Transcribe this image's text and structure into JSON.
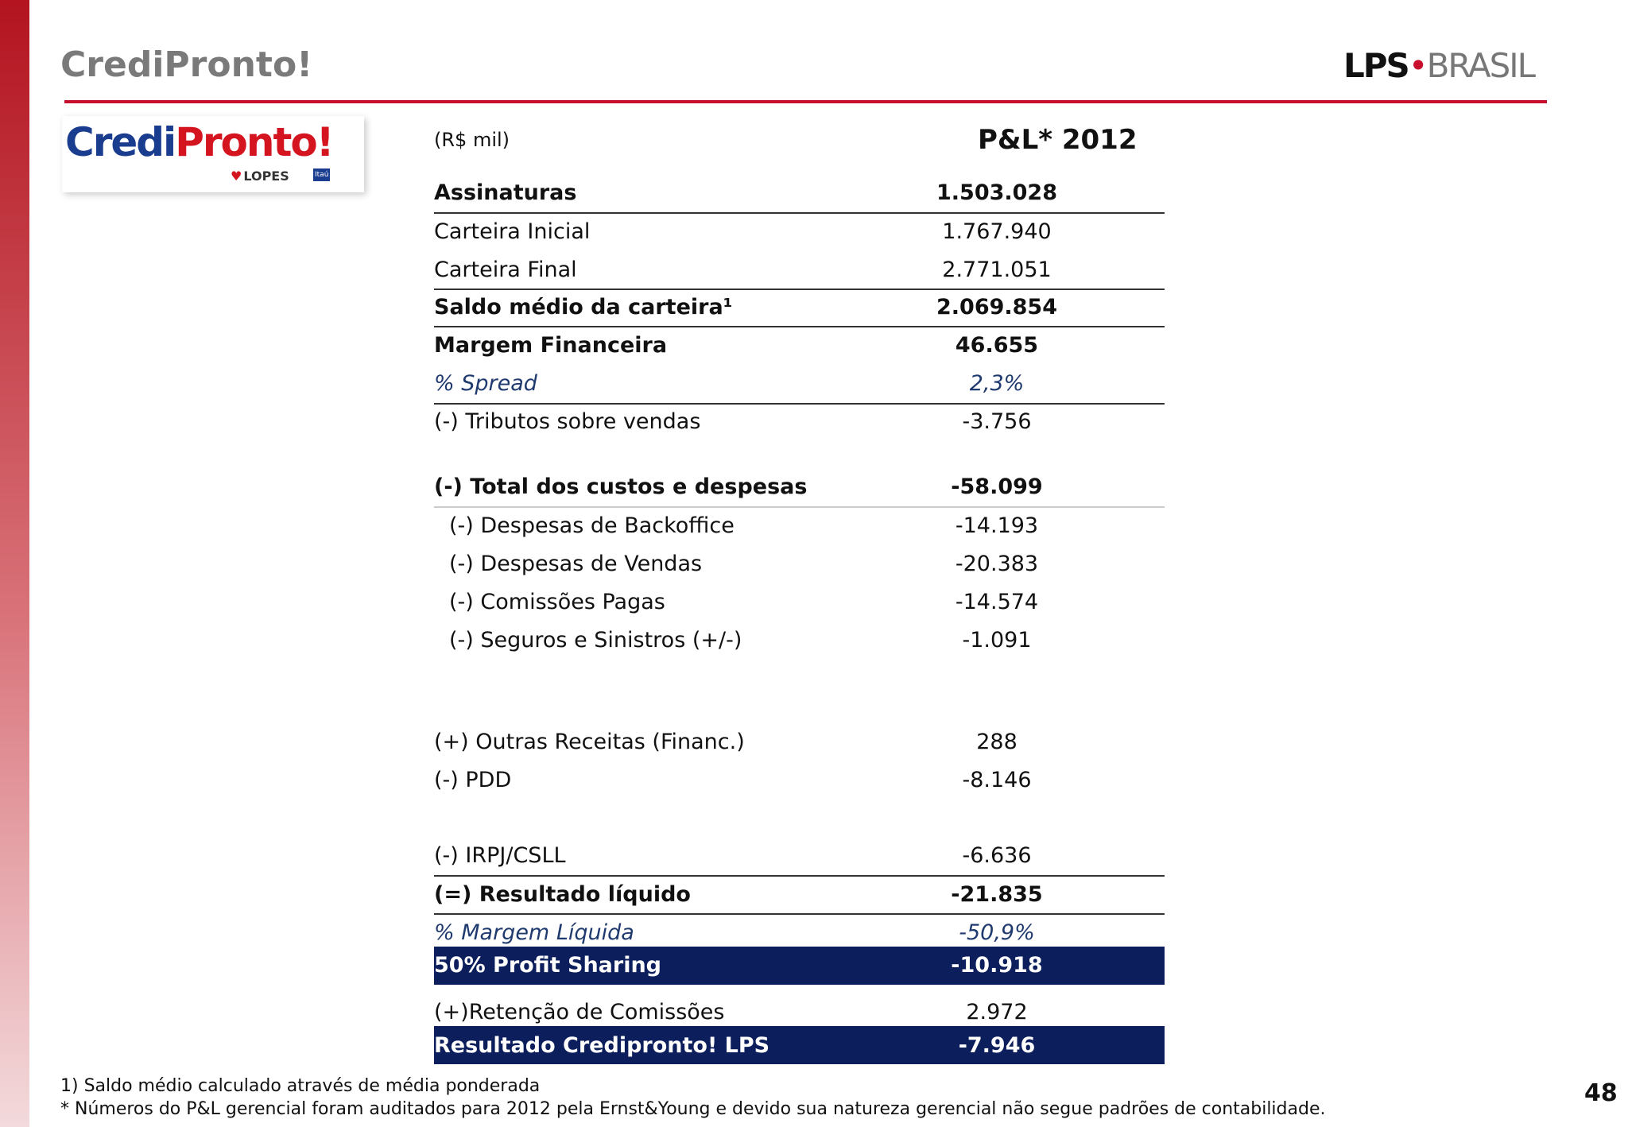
{
  "header": {
    "title": "CrediPronto!",
    "brand": {
      "left": "LPS",
      "right": "BRASIL"
    }
  },
  "logo": {
    "credi": "Credi",
    "pronto": "Pronto!",
    "lopes": "LOPES",
    "itau": "Itaú"
  },
  "table": {
    "unit": "(R$ mil)",
    "column": "P&L* 2012",
    "rows": [
      [
        "Assinaturas",
        "1.503.028"
      ],
      [
        "Carteira Inicial",
        "1.767.940"
      ],
      [
        "Carteira Final",
        "2.771.051"
      ],
      [
        "Saldo médio da carteira¹",
        "2.069.854"
      ],
      [
        "Margem Financeira",
        "46.655"
      ],
      [
        "% Spread",
        "2,3%"
      ],
      [
        "(-) Tributos sobre vendas",
        "-3.756"
      ],
      [
        "(-) Total dos custos e despesas",
        "-58.099"
      ],
      [
        "(-) Despesas de Backoffice",
        "-14.193"
      ],
      [
        "(-) Despesas de Vendas",
        "-20.383"
      ],
      [
        "(-) Comissões Pagas",
        "-14.574"
      ],
      [
        "(-) Seguros e Sinistros (+/-)",
        "-1.091"
      ],
      [
        "(+) Outras Receitas (Financ.)",
        "288"
      ],
      [
        "(-) PDD",
        "-8.146"
      ],
      [
        "(-) IRPJ/CSLL",
        "-6.636"
      ],
      [
        "(=) Resultado líquido",
        "-21.835"
      ],
      [
        "% Margem Líquida",
        "-50,9%"
      ],
      [
        "50% Profit Sharing",
        "-10.918"
      ],
      [
        "(+)Retenção de Comissões",
        "2.972"
      ],
      [
        "Resultado Credipronto! LPS",
        "-7.946"
      ]
    ]
  },
  "footnotes": [
    "1) Saldo médio calculado através de média ponderada",
    "* Números do P&L gerencial foram auditados para 2012 pela Ernst&Young e devido sua natureza gerencial não segue padrões de contabilidade."
  ],
  "page_number": "48"
}
